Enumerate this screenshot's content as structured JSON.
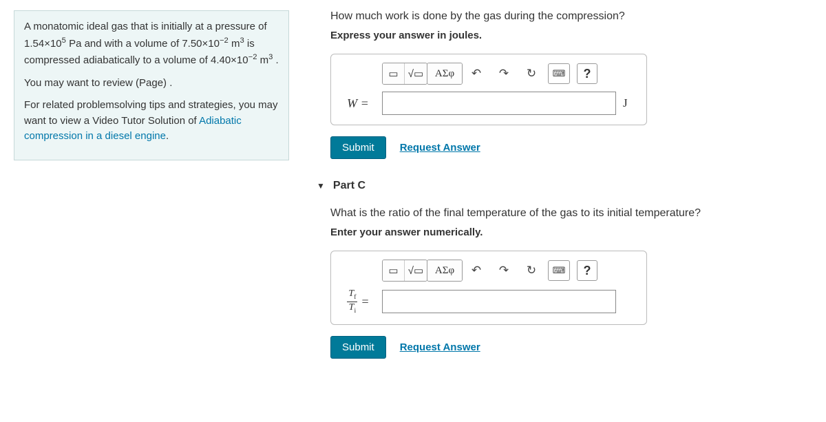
{
  "left_panel": {
    "p1_html": "A monatomic ideal gas that is initially at a pressure of 1.54×10<sup>5</sup> Pa and with a volume of 7.50×10<sup>−2</sup> m<sup>3</sup> is compressed adiabatically to a volume of 4.40×10<sup>−2</sup> m<sup>3</sup> .",
    "p2": "You may want to review (Page) .",
    "p3_prefix": "For related problemsolving tips and strategies, you may want to view a Video Tutor Solution of ",
    "p3_link": "Adiabatic compression in a diesel engine",
    "p3_suffix": "."
  },
  "partB": {
    "question": "How much work is done by the gas during the compression?",
    "instruction": "Express your answer in joules.",
    "var_label": "W =",
    "unit": "J",
    "input_value": ""
  },
  "partC": {
    "header": "Part C",
    "question": "What is the ratio of the final temperature of the gas to its initial temperature?",
    "instruction": "Enter your answer numerically.",
    "frac_num": "T",
    "frac_num_sub": "f",
    "frac_den": "T",
    "frac_den_sub": "i",
    "eq": "=",
    "input_value": ""
  },
  "toolbar": {
    "templates": "▭",
    "sqrt": "√▭",
    "greek": "ΑΣφ",
    "undo": "↶",
    "redo": "↷",
    "reset": "↻",
    "keyboard": "⌨",
    "help": "?"
  },
  "buttons": {
    "submit": "Submit",
    "request": "Request Answer"
  },
  "colors": {
    "panel_bg": "#edf6f6",
    "link": "#0077aa",
    "submit_bg": "#007a99"
  }
}
